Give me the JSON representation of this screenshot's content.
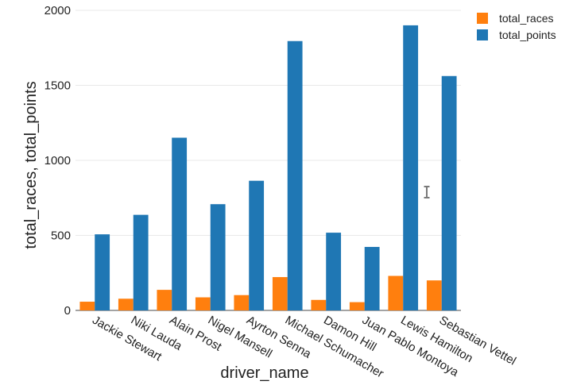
{
  "chart_data": {
    "type": "bar",
    "categories": [
      "Jackie Stewart",
      "Niki Lauda",
      "Alain Prost",
      "Nigel Mansell",
      "Ayrton Senna",
      "Michael Schumacher",
      "Damon Hill",
      "Juan Pablo Montoya",
      "Lewis Hamilton",
      "Sebastian Vettel"
    ],
    "series": [
      {
        "name": "total_races",
        "color": "#ff7f0e",
        "values": [
          58,
          78,
          137,
          87,
          102,
          222,
          70,
          55,
          230,
          200
        ]
      },
      {
        "name": "total_points",
        "color": "#1f77b4",
        "values": [
          507,
          637,
          1151,
          708,
          864,
          1795,
          518,
          423,
          1900,
          1562
        ]
      }
    ],
    "xlabel": "driver_name",
    "ylabel": "total_races, total_points",
    "ylim": [
      0,
      2000
    ],
    "yticks": [
      0,
      500,
      1000,
      1500,
      2000
    ],
    "grid": true,
    "legend_position": "top-right"
  }
}
